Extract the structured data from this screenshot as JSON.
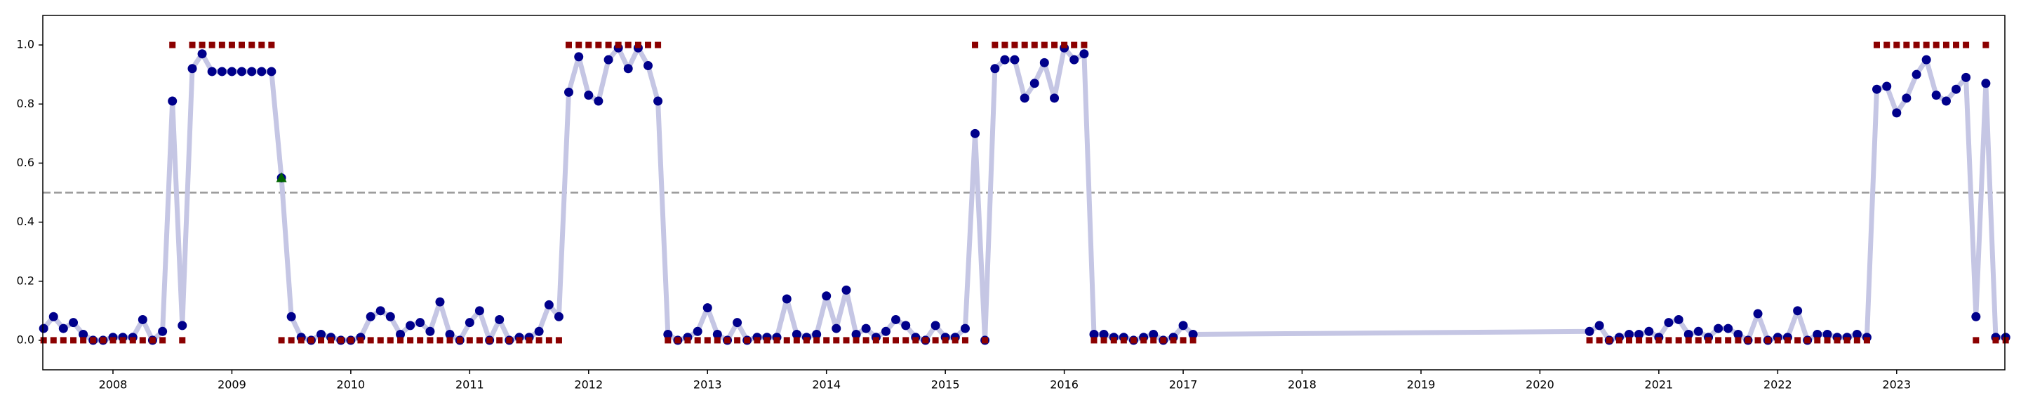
{
  "chart_data": {
    "type": "line",
    "x": [
      2007.417,
      2007.5,
      2007.583,
      2007.667,
      2007.75,
      2007.833,
      2007.917,
      2008,
      2008.083,
      2008.167,
      2008.25,
      2008.333,
      2008.417,
      2008.5,
      2008.583,
      2008.667,
      2008.75,
      2008.833,
      2008.917,
      2009,
      2009.083,
      2009.167,
      2009.25,
      2009.333,
      2009.417,
      2009.5,
      2009.583,
      2009.667,
      2009.75,
      2009.833,
      2009.917,
      2010,
      2010.083,
      2010.167,
      2010.25,
      2010.333,
      2010.417,
      2010.5,
      2010.583,
      2010.667,
      2010.75,
      2010.833,
      2010.917,
      2011,
      2011.083,
      2011.167,
      2011.25,
      2011.333,
      2011.417,
      2011.5,
      2011.583,
      2011.667,
      2011.75,
      2011.833,
      2011.917,
      2012,
      2012.083,
      2012.167,
      2012.25,
      2012.333,
      2012.417,
      2012.5,
      2012.583,
      2012.667,
      2012.75,
      2012.833,
      2012.917,
      2013,
      2013.083,
      2013.167,
      2013.25,
      2013.333,
      2013.417,
      2013.5,
      2013.583,
      2013.667,
      2013.75,
      2013.833,
      2013.917,
      2014,
      2014.083,
      2014.167,
      2014.25,
      2014.333,
      2014.417,
      2014.5,
      2014.583,
      2014.667,
      2014.75,
      2014.833,
      2014.917,
      2015,
      2015.083,
      2015.167,
      2015.25,
      2015.333,
      2015.417,
      2015.5,
      2015.583,
      2015.667,
      2015.75,
      2015.833,
      2015.917,
      2016,
      2016.083,
      2016.167,
      2016.25,
      2016.333,
      2016.417,
      2016.5,
      2016.583,
      2016.667,
      2016.75,
      2016.833,
      2016.917,
      2017,
      2017.083,
      2020.417,
      2020.5,
      2020.583,
      2020.667,
      2020.75,
      2020.833,
      2020.917,
      2021,
      2021.083,
      2021.167,
      2021.25,
      2021.333,
      2021.417,
      2021.5,
      2021.583,
      2021.667,
      2021.75,
      2021.833,
      2021.917,
      2022,
      2022.083,
      2022.167,
      2022.25,
      2022.333,
      2022.417,
      2022.5,
      2022.583,
      2022.667,
      2022.75,
      2022.833,
      2022.917,
      2023,
      2023.083,
      2023.167,
      2023.25,
      2023.333,
      2023.417,
      2023.5,
      2023.583,
      2023.667,
      2023.75,
      2023.833,
      2023.917
    ],
    "series": [
      {
        "color": "#c5c6e4",
        "marker": "circle",
        "marker_color": "#00008b",
        "line": true,
        "values": [
          0.04,
          0.08,
          0.04,
          0.06,
          0.02,
          0.0,
          0.0,
          0.01,
          0.01,
          0.01,
          0.07,
          0.0,
          0.03,
          0.81,
          0.05,
          0.92,
          0.97,
          0.91,
          0.91,
          0.91,
          0.91,
          0.91,
          0.91,
          0.91,
          0.55,
          0.08,
          0.01,
          0.0,
          0.02,
          0.01,
          0.0,
          0.0,
          0.01,
          0.08,
          0.1,
          0.08,
          0.02,
          0.05,
          0.06,
          0.03,
          0.13,
          0.02,
          0.0,
          0.06,
          0.1,
          0.0,
          0.07,
          0.0,
          0.01,
          0.01,
          0.03,
          0.12,
          0.08,
          0.84,
          0.96,
          0.83,
          0.81,
          0.95,
          0.99,
          0.92,
          0.99,
          0.93,
          0.81,
          0.02,
          0.0,
          0.01,
          0.03,
          0.11,
          0.02,
          0.0,
          0.06,
          0.0,
          0.01,
          0.01,
          0.01,
          0.14,
          0.02,
          0.01,
          0.02,
          0.15,
          0.04,
          0.17,
          0.02,
          0.04,
          0.01,
          0.03,
          0.07,
          0.05,
          0.01,
          0.0,
          0.05,
          0.01,
          0.01,
          0.04,
          0.7,
          0.0,
          0.92,
          0.95,
          0.95,
          0.82,
          0.87,
          0.94,
          0.82,
          0.99,
          0.95,
          0.97,
          0.02,
          0.02,
          0.01,
          0.01,
          0.0,
          0.01,
          0.02,
          0.0,
          0.01,
          0.05,
          0.02,
          0.03,
          0.05,
          0.0,
          0.01,
          0.02,
          0.02,
          0.03,
          0.01,
          0.06,
          0.07,
          0.02,
          0.03,
          0.01,
          0.04,
          0.04,
          0.02,
          0.0,
          0.09,
          0.0,
          0.01,
          0.01,
          0.1,
          0.0,
          0.02,
          0.02,
          0.01,
          0.01,
          0.02,
          0.01,
          0.85,
          0.86,
          0.77,
          0.82,
          0.9,
          0.95,
          0.83,
          0.81,
          0.85,
          0.89,
          0.08,
          0.87,
          0.01,
          0.01
        ]
      },
      {
        "color": "#8b0000",
        "marker": "square",
        "line": false,
        "values": [
          0,
          0,
          0,
          0,
          0,
          0,
          0,
          0,
          0,
          0,
          0,
          0,
          0,
          1,
          0,
          1,
          1,
          1,
          1,
          1,
          1,
          1,
          1,
          1,
          0,
          0,
          0,
          0,
          0,
          0,
          0,
          0,
          0,
          0,
          0,
          0,
          0,
          0,
          0,
          0,
          0,
          0,
          0,
          0,
          0,
          0,
          0,
          0,
          0,
          0,
          0,
          0,
          0,
          1,
          1,
          1,
          1,
          1,
          1,
          1,
          1,
          1,
          1,
          0,
          0,
          0,
          0,
          0,
          0,
          0,
          0,
          0,
          0,
          0,
          0,
          0,
          0,
          0,
          0,
          0,
          0,
          0,
          0,
          0,
          0,
          0,
          0,
          0,
          0,
          0,
          0,
          0,
          0,
          0,
          1,
          0,
          1,
          1,
          1,
          1,
          1,
          1,
          1,
          1,
          1,
          1,
          0,
          0,
          0,
          0,
          0,
          0,
          0,
          0,
          0,
          0,
          0,
          0,
          0,
          0,
          0,
          0,
          0,
          0,
          0,
          0,
          0,
          0,
          0,
          0,
          0,
          0,
          0,
          0,
          0,
          0,
          0,
          0,
          0,
          0,
          0,
          0,
          0,
          0,
          0,
          0,
          1,
          1,
          1,
          1,
          1,
          1,
          1,
          1,
          1,
          1,
          0,
          1,
          0,
          0
        ]
      },
      {
        "color": "#006400",
        "marker": "triangle",
        "line": false,
        "x": [
          2009.417
        ],
        "values": [
          0.55
        ]
      }
    ],
    "hline": {
      "value": 0.5,
      "color": "#999999",
      "style": "dashed"
    },
    "xlim": [
      2007.41,
      2023.91
    ],
    "xticks": [
      2008,
      2009,
      2010,
      2011,
      2012,
      2013,
      2014,
      2015,
      2016,
      2017,
      2018,
      2019,
      2020,
      2021,
      2022,
      2023
    ],
    "ylim": [
      -0.1,
      1.1
    ],
    "yticks": [
      {
        "value": 0,
        "label": "0.0"
      },
      0.2,
      0.4,
      0.6,
      0.8,
      {
        "value": 1,
        "label": "1.0"
      }
    ],
    "grid": false
  }
}
